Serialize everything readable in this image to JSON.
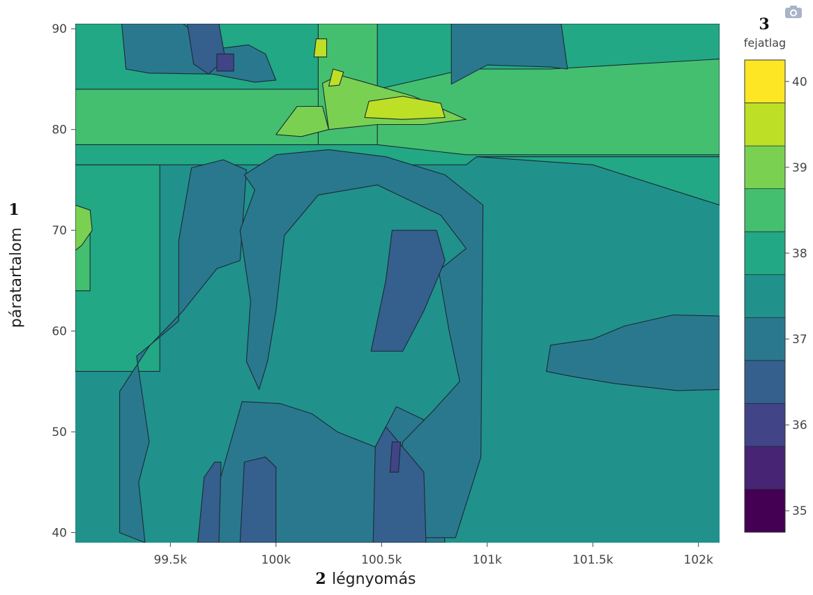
{
  "chart_data": {
    "type": "contour",
    "title": "",
    "xlabel": "légnyomás",
    "ylabel": "páratartalom",
    "xlim": [
      99050,
      102100
    ],
    "ylim": [
      39,
      90.5
    ],
    "x_ticks": [
      {
        "v": 99500,
        "label": "99.5k"
      },
      {
        "v": 100000,
        "label": "100k"
      },
      {
        "v": 100500,
        "label": "100.5k"
      },
      {
        "v": 101000,
        "label": "101k"
      },
      {
        "v": 101500,
        "label": "101.5k"
      },
      {
        "v": 102000,
        "label": "102k"
      }
    ],
    "y_ticks": [
      {
        "v": 40,
        "label": "40"
      },
      {
        "v": 50,
        "label": "50"
      },
      {
        "v": 60,
        "label": "60"
      },
      {
        "v": 70,
        "label": "70"
      },
      {
        "v": 80,
        "label": "80"
      },
      {
        "v": 90,
        "label": "90"
      }
    ],
    "colorbar": {
      "title": "fejatlag",
      "range": [
        34.75,
        40.25
      ],
      "tick_values": [
        35,
        36,
        37,
        38,
        39,
        40
      ],
      "levels": [
        34.75,
        35.25,
        35.75,
        36.25,
        36.75,
        37.25,
        37.75,
        38.25,
        38.75,
        39.25,
        39.75,
        40.25
      ],
      "colors": [
        "#440154",
        "#482475",
        "#414487",
        "#355f8d",
        "#2a788e",
        "#21918c",
        "#22a884",
        "#44bf70",
        "#7ad151",
        "#bddf26",
        "#fde725"
      ]
    },
    "regions": [
      {
        "level": 37.25,
        "poly": [
          [
            99050,
            39
          ],
          [
            102100,
            39
          ],
          [
            102100,
            90.5
          ],
          [
            99050,
            90.5
          ]
        ]
      },
      {
        "level": 37.75,
        "poly": [
          [
            99050,
            76.5
          ],
          [
            99090,
            76.5
          ],
          [
            99090,
            90.5
          ],
          [
            99050,
            90.5
          ]
        ]
      },
      {
        "level": 37.75,
        "poly": [
          [
            99050,
            56
          ],
          [
            99450,
            56
          ],
          [
            99450,
            76.5
          ],
          [
            99050,
            76.5
          ]
        ]
      },
      {
        "level": 37.75,
        "poly": [
          [
            99050,
            76.5
          ],
          [
            100900,
            76.5
          ],
          [
            100950,
            77.3
          ],
          [
            102100,
            77.3
          ],
          [
            102100,
            90.5
          ],
          [
            99050,
            90.5
          ]
        ]
      },
      {
        "level": 37.75,
        "poly": [
          [
            100950,
            77.3
          ],
          [
            101500,
            76.5
          ],
          [
            102100,
            72.5
          ],
          [
            102100,
            77.3
          ]
        ]
      },
      {
        "level": 38.25,
        "poly": [
          [
            99050,
            78.5
          ],
          [
            100480,
            78.5
          ],
          [
            100900,
            77.5
          ],
          [
            102100,
            77.5
          ],
          [
            102100,
            87
          ],
          [
            101300,
            86
          ],
          [
            100900,
            86
          ],
          [
            100480,
            84
          ],
          [
            99050,
            84
          ]
        ]
      },
      {
        "level": 38.25,
        "poly": [
          [
            100200,
            78.5
          ],
          [
            100480,
            78.5
          ],
          [
            100480,
            90.5
          ],
          [
            100200,
            90.5
          ]
        ]
      },
      {
        "level": 38.25,
        "poly": [
          [
            99050,
            64
          ],
          [
            99120,
            64
          ],
          [
            99120,
            72
          ],
          [
            99050,
            72
          ]
        ]
      },
      {
        "level": 38.75,
        "poly": [
          [
            100250,
            80
          ],
          [
            100480,
            80.5
          ],
          [
            100700,
            80.5
          ],
          [
            100900,
            81
          ],
          [
            100650,
            83.3
          ],
          [
            100420,
            84.7
          ],
          [
            100300,
            85.4
          ],
          [
            100220,
            84.6
          ]
        ]
      },
      {
        "level": 38.75,
        "poly": [
          [
            100000,
            79.5
          ],
          [
            100120,
            79.3
          ],
          [
            100250,
            80
          ],
          [
            100220,
            82.3
          ],
          [
            100100,
            82.3
          ]
        ]
      },
      {
        "level": 38.75,
        "poly": [
          [
            99080,
            68.5
          ],
          [
            99130,
            70
          ],
          [
            99120,
            72
          ],
          [
            99050,
            72.5
          ],
          [
            99050,
            68
          ]
        ]
      },
      {
        "level": 39.25,
        "poly": [
          [
            100420,
            81.2
          ],
          [
            100600,
            81
          ],
          [
            100800,
            81.2
          ],
          [
            100780,
            82.6
          ],
          [
            100600,
            83.3
          ],
          [
            100440,
            82.8
          ]
        ]
      },
      {
        "level": 39.25,
        "poly": [
          [
            100250,
            84.3
          ],
          [
            100300,
            84.4
          ],
          [
            100320,
            85.7
          ],
          [
            100270,
            86
          ]
        ]
      },
      {
        "level": 39.25,
        "poly": [
          [
            100180,
            87.2
          ],
          [
            100240,
            87.2
          ],
          [
            100240,
            89
          ],
          [
            100190,
            89
          ]
        ]
      },
      {
        "level": 36.75,
        "poly": [
          [
            99260,
            40
          ],
          [
            99260,
            54
          ],
          [
            99400,
            58.5
          ],
          [
            99560,
            62
          ],
          [
            99720,
            66.2
          ],
          [
            99830,
            67
          ],
          [
            99860,
            76
          ],
          [
            99750,
            77
          ],
          [
            99600,
            76.2
          ],
          [
            99540,
            69
          ],
          [
            99540,
            61
          ],
          [
            99340,
            57.5
          ],
          [
            99400,
            49
          ],
          [
            99350,
            45
          ],
          [
            99380,
            39
          ]
        ]
      },
      {
        "level": 36.75,
        "poly": [
          [
            99650,
            39
          ],
          [
            99840,
            53
          ],
          [
            100020,
            52.8
          ],
          [
            100170,
            51.8
          ],
          [
            100290,
            50
          ],
          [
            100470,
            48.5
          ],
          [
            100570,
            52.5
          ],
          [
            100720,
            51
          ],
          [
            100770,
            45
          ],
          [
            100800,
            39
          ]
        ]
      },
      {
        "level": 36.75,
        "poly": [
          [
            99850,
            75.5
          ],
          [
            100000,
            77.5
          ],
          [
            100250,
            78
          ],
          [
            100520,
            77.3
          ],
          [
            100800,
            75.5
          ],
          [
            100980,
            72.5
          ],
          [
            100970,
            47.5
          ],
          [
            100880,
            41.5
          ],
          [
            100850,
            39.5
          ],
          [
            100550,
            39.5
          ],
          [
            100600,
            49
          ],
          [
            100740,
            52
          ],
          [
            100870,
            55
          ],
          [
            100820,
            60
          ],
          [
            100770,
            66
          ],
          [
            100900,
            68.2
          ],
          [
            100780,
            71.5
          ],
          [
            100480,
            74.5
          ],
          [
            100200,
            73.5
          ],
          [
            100040,
            69.5
          ],
          [
            100000,
            62
          ],
          [
            99960,
            57
          ],
          [
            99920,
            54.2
          ],
          [
            99860,
            57
          ],
          [
            99880,
            63
          ],
          [
            99830,
            70
          ],
          [
            99900,
            74
          ]
        ]
      },
      {
        "level": 36.75,
        "poly": [
          [
            99270,
            90.5
          ],
          [
            99560,
            90.5
          ],
          [
            99720,
            88
          ],
          [
            99870,
            88.4
          ],
          [
            99950,
            87.5
          ],
          [
            100000,
            84.9
          ],
          [
            99900,
            84.7
          ],
          [
            99700,
            85.5
          ],
          [
            99400,
            85.6
          ],
          [
            99290,
            86
          ]
        ]
      },
      {
        "level": 36.75,
        "poly": [
          [
            100830,
            84.5
          ],
          [
            101000,
            86.4
          ],
          [
            101300,
            86.2
          ],
          [
            101380,
            86
          ],
          [
            101350,
            90.5
          ],
          [
            100830,
            90.5
          ]
        ]
      },
      {
        "level": 36.75,
        "poly": [
          [
            101280,
            56
          ],
          [
            101400,
            55.5
          ],
          [
            101600,
            54.8
          ],
          [
            101900,
            54.1
          ],
          [
            102100,
            54.2
          ],
          [
            102100,
            61.5
          ],
          [
            101880,
            61.6
          ],
          [
            101650,
            60.5
          ],
          [
            101500,
            59.2
          ],
          [
            101300,
            58.6
          ]
        ]
      },
      {
        "level": 36.25,
        "poly": [
          [
            99630,
            39
          ],
          [
            99730,
            39
          ],
          [
            99740,
            47
          ],
          [
            99710,
            47
          ],
          [
            99660,
            45.5
          ]
        ]
      },
      {
        "level": 36.25,
        "poly": [
          [
            99830,
            39
          ],
          [
            100000,
            39
          ],
          [
            100000,
            46.5
          ],
          [
            99950,
            47.5
          ],
          [
            99850,
            47
          ]
        ]
      },
      {
        "level": 36.25,
        "poly": [
          [
            100460,
            39
          ],
          [
            100710,
            39
          ],
          [
            100700,
            46
          ],
          [
            100640,
            47.5
          ],
          [
            100520,
            50.5
          ],
          [
            100470,
            48.5
          ]
        ]
      },
      {
        "level": 36.25,
        "poly": [
          [
            99580,
            90.5
          ],
          [
            99730,
            90.5
          ],
          [
            99760,
            87
          ],
          [
            99680,
            85.5
          ],
          [
            99610,
            86.5
          ]
        ]
      },
      {
        "level": 36.25,
        "poly": [
          [
            100450,
            58
          ],
          [
            100520,
            65
          ],
          [
            100550,
            70
          ],
          [
            100760,
            70
          ],
          [
            100800,
            67
          ],
          [
            100700,
            62
          ],
          [
            100600,
            58
          ]
        ]
      },
      {
        "level": 35.75,
        "poly": [
          [
            100540,
            46
          ],
          [
            100580,
            46
          ],
          [
            100590,
            49
          ],
          [
            100550,
            49
          ]
        ]
      },
      {
        "level": 35.75,
        "poly": [
          [
            99720,
            85.8
          ],
          [
            99800,
            85.8
          ],
          [
            99800,
            87.5
          ],
          [
            99720,
            87.5
          ]
        ]
      }
    ]
  },
  "markers": {
    "ylabel_number": "1",
    "xlabel_number": "2",
    "colorbar_number": "3"
  }
}
